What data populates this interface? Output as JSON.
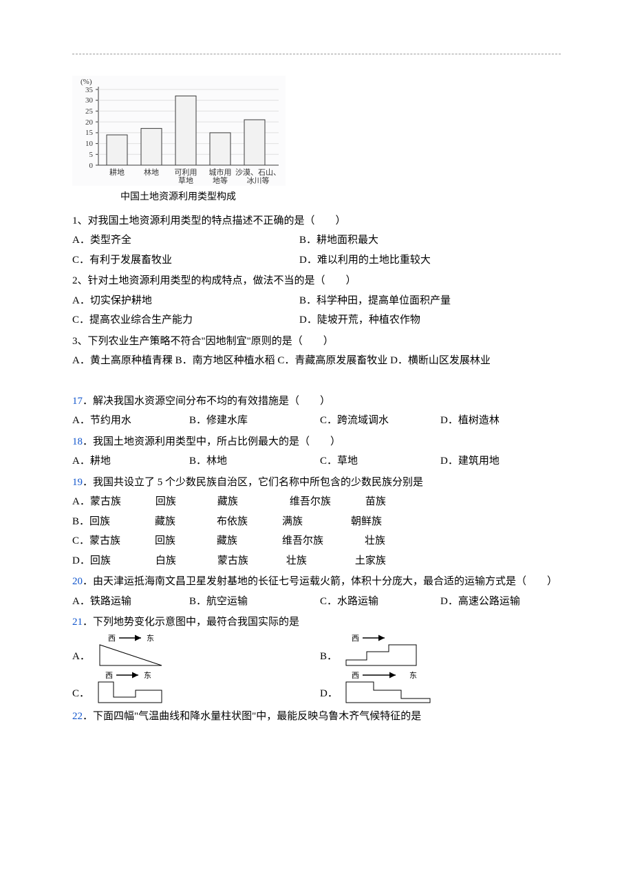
{
  "doc": {
    "top_rule": true
  },
  "chart": {
    "type": "bar",
    "y_axis_title": "(%)",
    "categories": [
      "耕地",
      "林地",
      "可利用\n草地",
      "城市用\n地等",
      "沙漠、石山、\n冰川等"
    ],
    "values": [
      14,
      17,
      32,
      15,
      21
    ],
    "ylim": [
      0,
      35
    ],
    "ytick_step": 5,
    "yticks": [
      0,
      5,
      10,
      15,
      20,
      25,
      30,
      35
    ],
    "bar_color": "#f2f2f2",
    "bar_border": "#3a3a3a",
    "axis_color": "#3a3a3a",
    "grid_color": "#e0e0e0",
    "cat_fontsize": 11,
    "tick_fontsize": 11,
    "background_color": "#fbfbfc",
    "caption": "中国土地资源利用类型构成"
  },
  "q1": {
    "stem": "1、对我国土地资源利用类型的特点描述不正确的是（　　）",
    "A": "A．类型齐全",
    "B": "B．耕地面积最大",
    "C": "C．有利于发展畜牧业",
    "D": "D．难以利用的土地比重较大"
  },
  "q2": {
    "stem": "2、针对土地资源利用类型的构成特点，做法不当的是（　　）",
    "A": "A．切实保护耕地",
    "B": "B．科学种田，提高单位面积产量",
    "C": "C．提高农业综合生产能力",
    "D": "D．陡坡开荒，种植农作物"
  },
  "q3": {
    "stem": "3、下列农业生产策略不符合\"因地制宜\"原则的是（　　）",
    "line": "A．黄土高原种植青稞 B．南方地区种植水稻 C．青藏高原发展畜牧业  D．横断山区发展林业"
  },
  "q17": {
    "num": "17",
    "stem": "．解决我国水资源空间分布不均的有效措施是（　　）",
    "A": "A．节约用水",
    "B": "B．修建水库",
    "C": "C．跨流域调水",
    "D": "D．植树造林"
  },
  "q18": {
    "num": "18",
    "stem": "．我国土地资源利用类型中，所占比例最大的是（　　）",
    "A": "A．耕地",
    "B": "B．林地",
    "C": "C．草地",
    "D": "D．建筑用地"
  },
  "q19": {
    "num": "19",
    "stem": "．我国共设立了 5 个少数民族自治区，它们名称中所包含的少数民族分别是",
    "rows": [
      {
        "p": "A．",
        "n": [
          "蒙古族",
          "回族",
          "藏族",
          "维吾尔族",
          "苗族"
        ]
      },
      {
        "p": "B．",
        "n": [
          "回族",
          "藏族",
          "布依族",
          "满族",
          "朝鲜族"
        ]
      },
      {
        "p": "C．",
        "n": [
          "蒙古族",
          "回族",
          "藏族",
          "维吾尔族",
          "壮族"
        ]
      },
      {
        "p": "D．",
        "n": [
          "回族",
          "白族",
          "蒙古族",
          "壮族",
          "土家族"
        ]
      }
    ]
  },
  "q20": {
    "num": "20",
    "stem": "．由天津运抵海南文昌卫星发射基地的长征七号运载火箭，体积十分庞大，最合适的运输方式是（　　）",
    "A": "A．铁路运输",
    "B": "B．航空运输",
    "C": "C．水路运输",
    "D": "D．高速公路运输"
  },
  "q21": {
    "num": "21",
    "stem": "．下列地势变化示意图中，最符合我国实际的是",
    "labels": {
      "A": "A．",
      "B": "B．",
      "C": "C．",
      "D": "D．"
    },
    "arrow_labels": {
      "west": "西",
      "east": "东"
    },
    "thumbs": {
      "stroke": "#000000",
      "fill": "#ffffff",
      "fontsize": 11
    }
  },
  "q22": {
    "num": "22",
    "stem": "．下面四幅\"气温曲线和降水量柱状图\"中，最能反映乌鲁木齐气候特征的是"
  }
}
